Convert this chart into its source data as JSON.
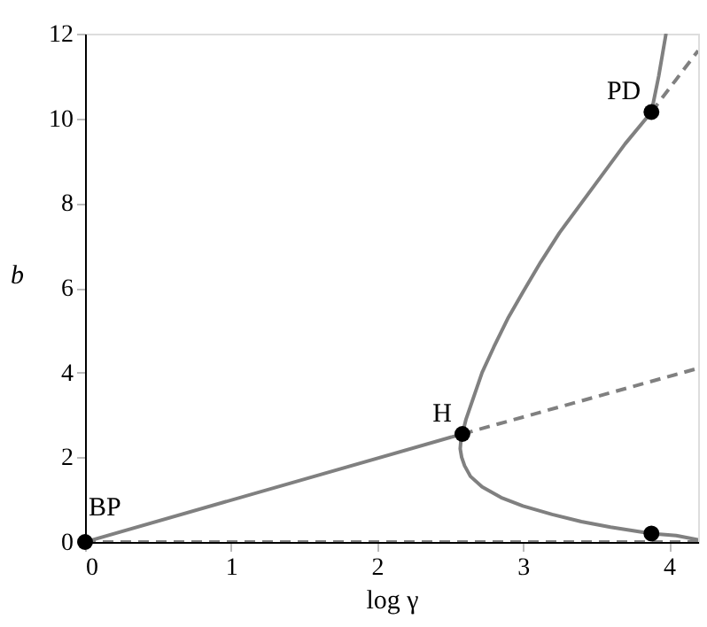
{
  "chart_data": {
    "type": "line",
    "xlabel": "log γ",
    "ylabel": "b",
    "xlim": [
      0,
      4.2
    ],
    "ylim": [
      0,
      12
    ],
    "xticks": [
      0,
      1,
      2,
      3,
      4
    ],
    "yticks": [
      0,
      2,
      4,
      6,
      8,
      10,
      12
    ],
    "grid": false,
    "series": [
      {
        "color": "#808080",
        "line_style": "solid",
        "x": [
          0,
          2.585
        ],
        "values": [
          0,
          2.55
        ]
      },
      {
        "color": "#808080",
        "line_style": "dashed",
        "x": [
          2.585,
          4.2
        ],
        "values": [
          2.55,
          4.1
        ]
      },
      {
        "color": "#808080",
        "line_style": "dashed",
        "x": [
          0,
          4.2
        ],
        "values": [
          0,
          0
        ]
      },
      {
        "color": "#808080",
        "line_style": "solid",
        "x": [
          3.88,
          3.6,
          3.4,
          3.2,
          3.0,
          2.85,
          2.72,
          2.64,
          2.6,
          2.58,
          2.57,
          2.575,
          2.585,
          2.61,
          2.66,
          2.72,
          2.8,
          2.9,
          3.0,
          3.12,
          3.25,
          3.4,
          3.55,
          3.7,
          3.88,
          3.93,
          3.98
        ],
        "values": [
          0.2,
          0.35,
          0.48,
          0.65,
          0.85,
          1.05,
          1.3,
          1.55,
          1.8,
          2.0,
          2.2,
          2.4,
          2.55,
          2.9,
          3.4,
          4.0,
          4.6,
          5.3,
          5.9,
          6.6,
          7.3,
          8.0,
          8.7,
          9.4,
          10.15,
          11.0,
          12
        ]
      },
      {
        "color": "#808080",
        "line_style": "dashed",
        "x": [
          3.88,
          4.2
        ],
        "values": [
          10.15,
          11.6
        ]
      },
      {
        "color": "#808080",
        "line_style": "solid",
        "x": [
          3.88,
          4.05,
          4.2
        ],
        "values": [
          0.2,
          0.15,
          0.05
        ]
      },
      {
        "type": "scatter",
        "color": "#000000",
        "marker": "circle",
        "x": [
          0,
          2.585,
          3.88,
          3.88
        ],
        "values": [
          0,
          2.55,
          10.15,
          0.2
        ]
      }
    ],
    "annotations": [
      {
        "text": "BP",
        "x": 0,
        "y": 0
      },
      {
        "text": "H",
        "x": 2.585,
        "y": 2.55
      },
      {
        "text": "PD",
        "x": 3.88,
        "y": 10.15
      }
    ]
  }
}
